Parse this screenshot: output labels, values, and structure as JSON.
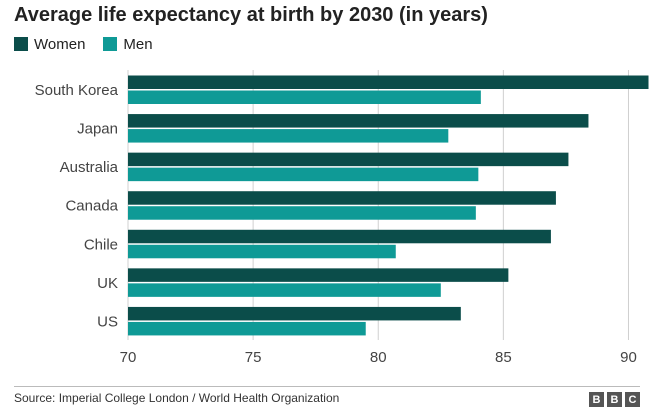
{
  "chart_data": {
    "type": "bar",
    "orientation": "horizontal",
    "title": "Average life expectancy at birth by 2030 (in years)",
    "categories": [
      "South Korea",
      "Japan",
      "Australia",
      "Canada",
      "Chile",
      "UK",
      "US"
    ],
    "series": [
      {
        "name": "Women",
        "color": "#0b4d4a",
        "values": [
          90.8,
          88.4,
          87.6,
          87.1,
          86.9,
          85.2,
          83.3
        ]
      },
      {
        "name": "Men",
        "color": "#0f9a96",
        "values": [
          84.1,
          82.8,
          84.0,
          83.9,
          80.7,
          82.5,
          79.5
        ]
      }
    ],
    "xlim": [
      70,
      90.5
    ],
    "xticks": [
      "70",
      "75",
      "80",
      "85",
      "90"
    ],
    "grid": true,
    "legend_position": "top-left"
  },
  "footer": {
    "source": "Source: Imperial College London / World Health Organization",
    "logo_letters": [
      "B",
      "B",
      "C"
    ]
  }
}
